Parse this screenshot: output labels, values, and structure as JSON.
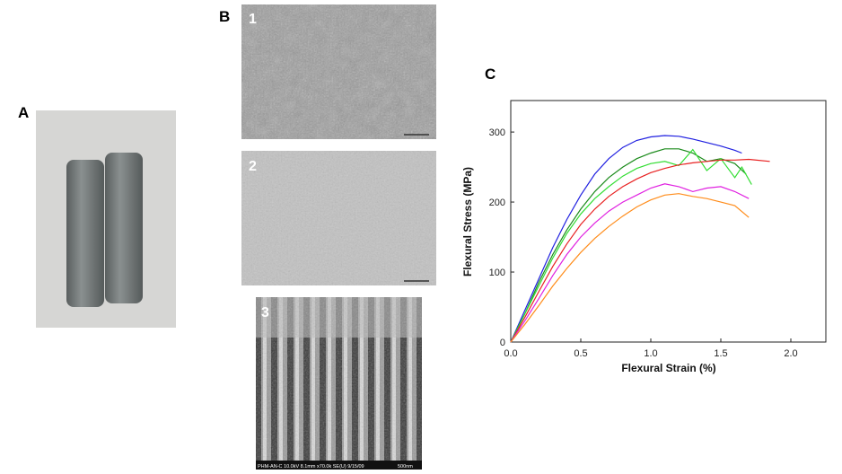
{
  "panels": {
    "a": "A",
    "b": "B",
    "b1": "1",
    "b2": "2",
    "b3": "3",
    "c": "C"
  },
  "sem_caption": {
    "info": "PHM-AN-C 10.0kV 8.1mm x70.0k SE(U) 9/15/09",
    "scale": "500nm"
  },
  "chart_data": {
    "type": "line",
    "x_label": "Flexural Strain (%)",
    "y_label": "Flexural Stress (MPa)",
    "xlim": [
      0,
      2.25
    ],
    "ylim": [
      0,
      345
    ],
    "xticks": [
      {
        "value": 0,
        "label": "0.0"
      },
      {
        "value": 0.5,
        "label": "0.5"
      },
      {
        "value": 1,
        "label": "1.0"
      },
      {
        "value": 1.5,
        "label": "1.5"
      },
      {
        "value": 2,
        "label": "2.0"
      }
    ],
    "yticks": [
      0,
      100,
      200,
      300
    ],
    "grid": false,
    "series": [
      {
        "color": "#1f1fe0",
        "x": [
          0,
          0.1,
          0.2,
          0.3,
          0.4,
          0.5,
          0.6,
          0.7,
          0.8,
          0.9,
          1.0,
          1.1,
          1.2,
          1.3,
          1.4,
          1.5,
          1.6,
          1.65
        ],
        "values": [
          0,
          45,
          90,
          135,
          175,
          210,
          240,
          262,
          278,
          288,
          293,
          295,
          294,
          290,
          285,
          280,
          274,
          270
        ]
      },
      {
        "color": "#1a8a1a",
        "x": [
          0,
          0.1,
          0.2,
          0.3,
          0.4,
          0.5,
          0.6,
          0.7,
          0.8,
          0.9,
          1.0,
          1.1,
          1.2,
          1.3,
          1.4,
          1.5,
          1.6,
          1.68
        ],
        "values": [
          0,
          40,
          85,
          125,
          160,
          190,
          215,
          235,
          250,
          262,
          270,
          276,
          276,
          270,
          258,
          262,
          255,
          240
        ]
      },
      {
        "color": "#33dd33",
        "x": [
          0,
          0.1,
          0.2,
          0.3,
          0.4,
          0.5,
          0.6,
          0.7,
          0.8,
          0.9,
          1.0,
          1.1,
          1.2,
          1.3,
          1.4,
          1.5,
          1.6,
          1.65,
          1.72
        ],
        "values": [
          0,
          40,
          80,
          120,
          155,
          183,
          205,
          222,
          237,
          248,
          255,
          258,
          252,
          275,
          245,
          262,
          235,
          250,
          225
        ]
      },
      {
        "color": "#e82020",
        "x": [
          0,
          0.1,
          0.2,
          0.3,
          0.4,
          0.5,
          0.6,
          0.7,
          0.8,
          0.9,
          1.0,
          1.1,
          1.2,
          1.3,
          1.4,
          1.5,
          1.6,
          1.7,
          1.85
        ],
        "values": [
          0,
          35,
          72,
          108,
          140,
          168,
          190,
          208,
          222,
          233,
          242,
          248,
          253,
          256,
          258,
          260,
          260,
          261,
          258
        ]
      },
      {
        "color": "#e020e0",
        "x": [
          0,
          0.1,
          0.2,
          0.3,
          0.4,
          0.5,
          0.6,
          0.7,
          0.8,
          0.9,
          1.0,
          1.1,
          1.2,
          1.3,
          1.4,
          1.5,
          1.6,
          1.7
        ],
        "values": [
          0,
          30,
          62,
          95,
          125,
          150,
          170,
          187,
          200,
          210,
          220,
          226,
          222,
          215,
          220,
          222,
          215,
          205
        ]
      },
      {
        "color": "#ff8c1a",
        "x": [
          0,
          0.1,
          0.2,
          0.3,
          0.4,
          0.5,
          0.6,
          0.7,
          0.8,
          0.9,
          1.0,
          1.1,
          1.2,
          1.3,
          1.4,
          1.5,
          1.6,
          1.7
        ],
        "values": [
          0,
          25,
          52,
          80,
          105,
          128,
          148,
          165,
          180,
          193,
          203,
          210,
          212,
          208,
          205,
          200,
          195,
          178
        ]
      }
    ]
  }
}
